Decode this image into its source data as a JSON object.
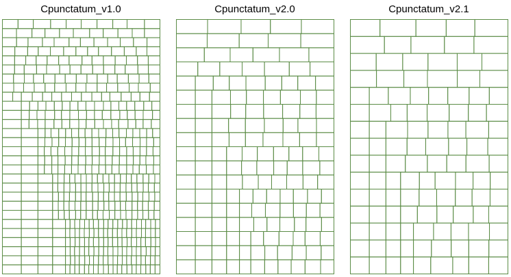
{
  "chart_data": [
    {
      "type": "treemap",
      "title": "Cpunctatum_v1.0",
      "levels": [
        {
          "rows": 1,
          "counts": [
            10
          ]
        },
        {
          "rows": 2,
          "counts": [
            11,
            12
          ]
        },
        {
          "rows": 3,
          "counts": [
            13,
            14,
            14
          ]
        },
        {
          "rows": 3,
          "counts": [
            15,
            15,
            16
          ]
        },
        {
          "rows": 3,
          "counts": [
            17,
            17,
            17
          ]
        },
        {
          "rows": 5,
          "counts": [
            18,
            18,
            18,
            18,
            18
          ]
        },
        {
          "rows": 5,
          "counts": [
            19,
            19,
            19,
            19,
            19
          ]
        },
        {
          "rows": 6,
          "counts": [
            20,
            20,
            20,
            20,
            20,
            20
          ]
        }
      ]
    },
    {
      "type": "treemap",
      "title": "Cpunctatum_v2.0",
      "levels": [
        {
          "rows": 1,
          "counts": [
            5
          ]
        },
        {
          "rows": 1,
          "counts": [
            5
          ]
        },
        {
          "rows": 1,
          "counts": [
            6
          ]
        },
        {
          "rows": 1,
          "counts": [
            7
          ]
        },
        {
          "rows": 1,
          "counts": [
            8
          ]
        },
        {
          "rows": 4,
          "counts": [
            7,
            7,
            7,
            7
          ]
        },
        {
          "rows": 3,
          "counts": [
            7,
            7,
            7
          ]
        },
        {
          "rows": 3,
          "counts": [
            7,
            7,
            7
          ]
        },
        {
          "rows": 3,
          "counts": [
            6,
            6,
            6
          ]
        }
      ]
    },
    {
      "type": "treemap",
      "title": "Cpunctatum_v2.1",
      "levels": [
        {
          "rows": 1,
          "counts": [
            5
          ]
        },
        {
          "rows": 1,
          "counts": [
            5
          ]
        },
        {
          "rows": 1,
          "counts": [
            6
          ]
        },
        {
          "rows": 1,
          "counts": [
            6
          ]
        },
        {
          "rows": 2,
          "counts": [
            7,
            7
          ]
        },
        {
          "rows": 3,
          "counts": [
            6,
            6,
            6
          ]
        },
        {
          "rows": 3,
          "counts": [
            6,
            6,
            6
          ]
        },
        {
          "rows": 3,
          "counts": [
            5,
            5,
            5
          ]
        }
      ]
    }
  ],
  "colors": {
    "border": "#5b8c46",
    "fill": "#ffffff",
    "title": "#000000"
  }
}
